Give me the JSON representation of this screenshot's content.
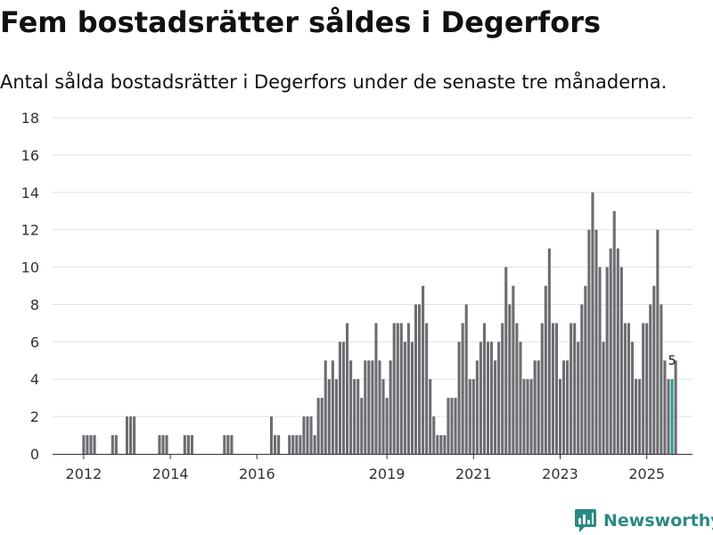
{
  "title": "Fem bostadsrätter såldes i Degerfors",
  "subtitle": "Antal sålda bostadsrätter i Degerfors under de senaste tre månaderna.",
  "brand": "Newsworthy",
  "colors": {
    "bar": "#6d6c72",
    "highlight": "#2a9d8f",
    "grid": "#e2e2e2",
    "axis": "#333333",
    "brand": "#2a8a84"
  },
  "chart_data": {
    "type": "bar",
    "title": "Fem bostadsrätter såldes i Degerfors",
    "subtitle": "Antal sålda bostadsrätter i Degerfors under de senaste tre månaderna.",
    "xlabel": "",
    "ylabel": "",
    "ylim": [
      0,
      18
    ],
    "yticks": [
      0,
      2,
      4,
      6,
      8,
      10,
      12,
      14,
      16,
      18
    ],
    "x_tick_labels": [
      {
        "label": "2012",
        "period_index": 7
      },
      {
        "label": "2014",
        "period_index": 31
      },
      {
        "label": "2016",
        "period_index": 55
      },
      {
        "label": "2019",
        "period_index": 91
      },
      {
        "label": "2021",
        "period_index": 115
      },
      {
        "label": "2023",
        "period_index": 139
      },
      {
        "label": "2025",
        "period_index": 163
      }
    ],
    "period_unit": "month",
    "first_period": "2011-05",
    "highlight_index": 170,
    "highlight_label": "5",
    "values": [
      0,
      0,
      0,
      0,
      0,
      0,
      0,
      1,
      1,
      1,
      1,
      0,
      0,
      0,
      0,
      1,
      1,
      0,
      0,
      2,
      2,
      2,
      0,
      0,
      0,
      0,
      0,
      0,
      1,
      1,
      1,
      0,
      0,
      0,
      0,
      1,
      1,
      1,
      0,
      0,
      0,
      0,
      0,
      0,
      0,
      0,
      1,
      1,
      1,
      0,
      0,
      0,
      0,
      0,
      0,
      0,
      0,
      0,
      0,
      2,
      1,
      1,
      0,
      0,
      1,
      1,
      1,
      1,
      2,
      2,
      2,
      1,
      3,
      3,
      5,
      4,
      5,
      4,
      6,
      6,
      7,
      5,
      4,
      4,
      3,
      5,
      5,
      5,
      7,
      5,
      4,
      3,
      5,
      7,
      7,
      7,
      6,
      7,
      6,
      8,
      8,
      9,
      7,
      4,
      2,
      1,
      1,
      1,
      3,
      3,
      3,
      6,
      7,
      8,
      4,
      4,
      5,
      6,
      7,
      6,
      6,
      5,
      6,
      7,
      10,
      8,
      9,
      7,
      6,
      4,
      4,
      4,
      5,
      5,
      7,
      9,
      11,
      7,
      7,
      4,
      5,
      5,
      7,
      7,
      6,
      8,
      9,
      12,
      14,
      12,
      10,
      6,
      10,
      11,
      13,
      11,
      10,
      7,
      7,
      6,
      4,
      4,
      7,
      7,
      8,
      9,
      12,
      8,
      5,
      4,
      4,
      5
    ]
  }
}
